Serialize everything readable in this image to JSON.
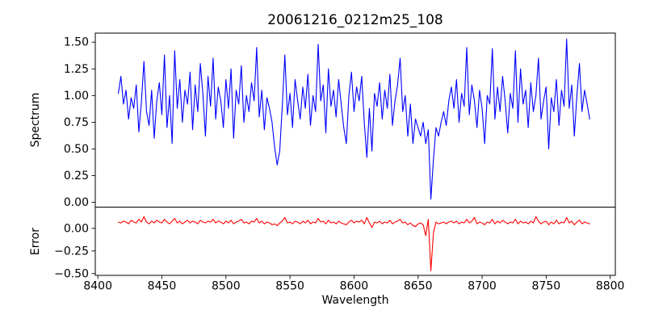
{
  "figure": {
    "title": "20061216_0212m25_108",
    "background_color": "#ffffff",
    "axis_color": "#000000"
  },
  "chart_data": {
    "type": "line",
    "title": "20061216_0212m25_108",
    "xlabel": "Wavelength",
    "xlim": [
      8398,
      8804
    ],
    "xticks": [
      8400,
      8450,
      8500,
      8550,
      8600,
      8650,
      8700,
      8750,
      8800
    ],
    "xtick_labels": [
      "8400",
      "8450",
      "8500",
      "8550",
      "8600",
      "8650",
      "8700",
      "8750",
      "8800"
    ],
    "x_start": 8416,
    "x_step": 2,
    "grid": false,
    "legend": false,
    "panels": [
      {
        "name": "spectrum",
        "ylabel": "Spectrum",
        "line_color": "#0000ff",
        "ylim": [
          -0.045,
          1.585
        ],
        "yticks": [
          0.0,
          0.25,
          0.5,
          0.75,
          1.0,
          1.25,
          1.5
        ],
        "ytick_labels": [
          "0.00",
          "0.25",
          "0.50",
          "0.75",
          "1.00",
          "1.25",
          "1.50"
        ],
        "values": [
          1.02,
          1.18,
          0.92,
          1.05,
          0.78,
          0.98,
          0.88,
          1.1,
          0.66,
          0.94,
          1.32,
          0.85,
          0.72,
          1.05,
          0.6,
          0.95,
          1.12,
          0.82,
          1.38,
          0.7,
          1.0,
          0.55,
          1.42,
          0.88,
          1.15,
          0.75,
          1.05,
          0.92,
          1.22,
          0.68,
          1.1,
          0.85,
          1.3,
          1.02,
          0.62,
          1.18,
          0.9,
          1.35,
          0.78,
          1.08,
          0.95,
          0.7,
          1.15,
          0.88,
          1.25,
          0.6,
          1.05,
          0.92,
          1.28,
          0.75,
          1.0,
          0.85,
          1.12,
          0.95,
          1.45,
          0.8,
          1.05,
          0.68,
          0.98,
          0.88,
          0.75,
          0.52,
          0.35,
          0.48,
          0.9,
          1.38,
          0.82,
          1.02,
          0.7,
          1.15,
          0.95,
          0.78,
          1.08,
          0.88,
          1.2,
          0.72,
          1.0,
          0.85,
          1.48,
          0.95,
          1.1,
          0.65,
          1.25,
          0.9,
          1.05,
          0.8,
          1.15,
          0.92,
          0.7,
          0.55,
          1.0,
          1.22,
          0.85,
          1.08,
          0.95,
          1.18,
          0.75,
          0.42,
          0.88,
          0.48,
          1.02,
          0.9,
          1.12,
          0.78,
          1.05,
          0.88,
          1.2,
          0.72,
          0.95,
          1.1,
          1.35,
          0.85,
          1.0,
          0.62,
          0.92,
          0.55,
          0.78,
          0.7,
          0.62,
          0.75,
          0.55,
          0.68,
          0.03,
          0.4,
          0.7,
          0.62,
          0.75,
          0.85,
          0.72,
          0.95,
          1.08,
          0.88,
          1.15,
          0.75,
          1.02,
          0.9,
          1.45,
          0.82,
          1.1,
          0.95,
          0.7,
          1.05,
          0.88,
          0.55,
          1.0,
          0.92,
          1.44,
          0.78,
          1.08,
          0.85,
          1.18,
          0.95,
          0.65,
          1.02,
          0.88,
          1.42,
          0.75,
          1.25,
          0.92,
          1.05,
          0.7,
          1.12,
          0.85,
          1.0,
          1.35,
          0.78,
          0.95,
          1.08,
          0.5,
          0.98,
          0.85,
          1.15,
          0.72,
          1.05,
          0.9,
          1.53,
          0.88,
          1.1,
          0.62,
          1.0,
          1.3,
          0.85,
          1.05,
          0.92,
          0.78
        ]
      },
      {
        "name": "error",
        "ylabel": "Error",
        "line_color": "#ff0000",
        "ylim": [
          -0.52,
          0.235
        ],
        "yticks": [
          0.0,
          -0.25,
          -0.5
        ],
        "ytick_labels": [
          "0.00",
          "−0.25",
          "−0.50"
        ],
        "values": [
          0.07,
          0.06,
          0.08,
          0.07,
          0.05,
          0.09,
          0.07,
          0.06,
          0.1,
          0.07,
          0.13,
          0.07,
          0.05,
          0.08,
          0.06,
          0.09,
          0.07,
          0.06,
          0.1,
          0.07,
          0.05,
          0.08,
          0.11,
          0.06,
          0.08,
          0.05,
          0.07,
          0.09,
          0.06,
          0.08,
          0.07,
          0.05,
          0.09,
          0.07,
          0.06,
          0.08,
          0.07,
          0.1,
          0.06,
          0.08,
          0.07,
          0.05,
          0.08,
          0.06,
          0.09,
          0.05,
          0.07,
          0.08,
          0.1,
          0.06,
          0.07,
          0.05,
          0.08,
          0.07,
          0.11,
          0.06,
          0.08,
          0.05,
          0.07,
          0.06,
          0.04,
          0.05,
          0.03,
          0.06,
          0.08,
          0.12,
          0.06,
          0.07,
          0.05,
          0.08,
          0.07,
          0.05,
          0.08,
          0.06,
          0.09,
          0.05,
          0.07,
          0.06,
          0.11,
          0.07,
          0.08,
          0.05,
          0.09,
          0.06,
          0.07,
          0.05,
          0.08,
          0.06,
          0.05,
          0.04,
          0.07,
          0.09,
          0.06,
          0.08,
          0.07,
          0.09,
          0.05,
          0.12,
          0.06,
          0.01,
          0.07,
          0.06,
          0.08,
          0.05,
          0.07,
          0.06,
          0.09,
          0.05,
          0.07,
          0.08,
          0.1,
          0.06,
          0.07,
          0.04,
          0.06,
          0.03,
          0.02,
          0.05,
          0.06,
          0.04,
          -0.08,
          0.1,
          -0.47,
          -0.05,
          0.07,
          0.05,
          0.06,
          0.07,
          0.05,
          0.07,
          0.08,
          0.06,
          0.08,
          0.05,
          0.07,
          0.06,
          0.1,
          0.06,
          0.08,
          0.12,
          0.05,
          0.07,
          0.06,
          0.04,
          0.07,
          0.06,
          0.1,
          0.05,
          0.08,
          0.06,
          0.09,
          0.07,
          0.05,
          0.07,
          0.06,
          0.1,
          0.05,
          0.08,
          0.06,
          0.07,
          0.05,
          0.08,
          0.06,
          0.13,
          0.08,
          0.05,
          0.07,
          0.08,
          0.04,
          0.07,
          0.05,
          0.09,
          0.05,
          0.07,
          0.06,
          0.12,
          0.06,
          0.08,
          0.04,
          0.07,
          0.09,
          0.05,
          0.07,
          0.06,
          0.05
        ]
      }
    ]
  }
}
